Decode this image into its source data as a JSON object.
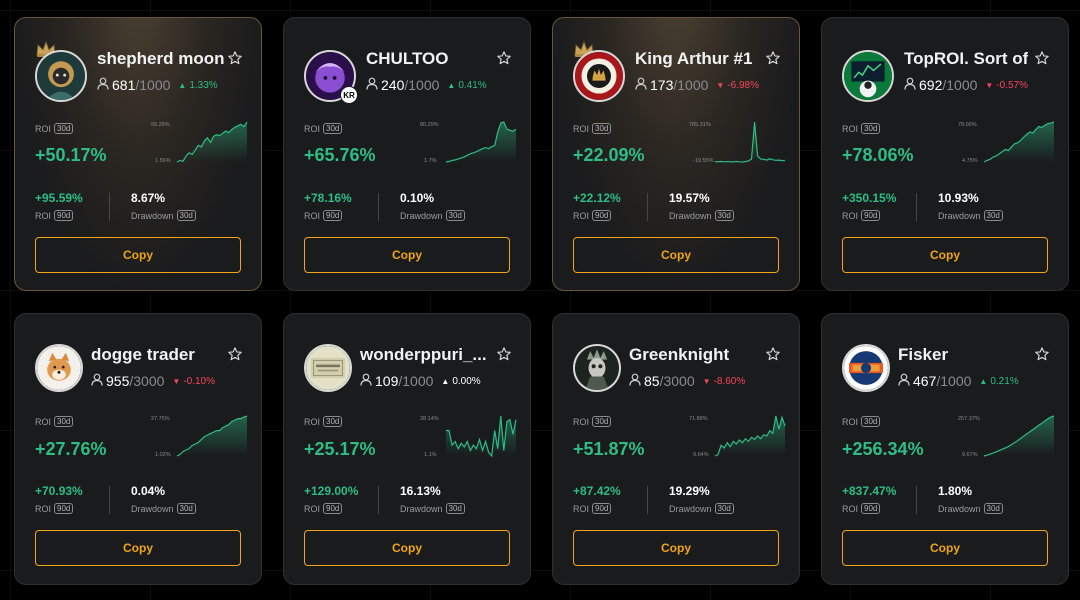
{
  "ui": {
    "roi_label": "ROI",
    "drawdown_label": "Drawdown",
    "period_30": "30d",
    "period_90": "90d",
    "copy_label": "Copy"
  },
  "colors": {
    "up": "#2ebd85",
    "down": "#f6465d",
    "accent": "#f0a416"
  },
  "icons": [
    "crown-icon",
    "star-icon",
    "person-icon",
    "triangle-up-icon",
    "triangle-down-icon"
  ],
  "traders": [
    {
      "name": "shepherd moon",
      "featured": true,
      "followers": "681",
      "capacity": "/1000",
      "change": "1.33%",
      "change_dir": "up",
      "roi_30d": "+50.17%",
      "spark_max": "55.26%",
      "spark_min": "1.56%",
      "spark": [
        2,
        4,
        3,
        10,
        14,
        12,
        18,
        24,
        22,
        30,
        34,
        28,
        36,
        38,
        37,
        40,
        43,
        41,
        45,
        48,
        50,
        52,
        49,
        55
      ],
      "roi_90d": "+95.59%",
      "drawdown_30d": "8.67%"
    },
    {
      "name": "CHULTOO",
      "featured": false,
      "badge": "KR",
      "followers": "240",
      "capacity": "/1000",
      "change": "0.41%",
      "change_dir": "up",
      "roi_30d": "+65.76%",
      "spark_max": "80.29%",
      "spark_min": "1.7%",
      "spark": [
        2,
        3,
        5,
        6,
        8,
        10,
        12,
        15,
        18,
        20,
        22,
        25,
        28,
        30,
        28,
        32,
        34,
        60,
        78,
        80,
        66,
        64,
        62,
        66
      ],
      "roi_90d": "+78.16%",
      "drawdown_30d": "0.10%"
    },
    {
      "name": "King Arthur #1",
      "featured": true,
      "followers": "173",
      "capacity": "/1000",
      "change": "-6.98%",
      "change_dir": "down",
      "roi_30d": "+22.09%",
      "spark_max": "785.31%",
      "spark_min": "-19.55%",
      "spark": [
        -10,
        -12,
        -8,
        -14,
        -10,
        -12,
        -16,
        -9,
        -15,
        -19,
        -10,
        5,
        40,
        785,
        100,
        40,
        35,
        20,
        45,
        25,
        15,
        20,
        10,
        12
      ],
      "roi_90d": "+22.12%",
      "drawdown_30d": "19.57%"
    },
    {
      "name": "TopROI. Sort of",
      "featured": false,
      "followers": "692",
      "capacity": "/1000",
      "change": "-0.57%",
      "change_dir": "down",
      "roi_30d": "+78.06%",
      "spark_max": "78.06%",
      "spark_min": "4.75%",
      "spark": [
        5,
        8,
        10,
        14,
        16,
        20,
        24,
        28,
        26,
        32,
        38,
        40,
        44,
        50,
        55,
        60,
        58,
        64,
        70,
        68,
        72,
        75,
        76,
        78
      ],
      "roi_90d": "+350.15%",
      "drawdown_30d": "10.93%"
    },
    {
      "name": "dogge trader",
      "featured": false,
      "followers": "955",
      "capacity": "/3000",
      "change": "-0.10%",
      "change_dir": "down",
      "roi_30d": "+27.76%",
      "spark_max": "27.75%",
      "spark_min": "1.02%",
      "spark": [
        1,
        2,
        4,
        5,
        6,
        8,
        9,
        10,
        12,
        14,
        15,
        16,
        17,
        18,
        18,
        20,
        21,
        22,
        24,
        25,
        26,
        26,
        27,
        27.75
      ],
      "roi_90d": "+70.93%",
      "drawdown_30d": "0.04%"
    },
    {
      "name": "wonderppuri_...",
      "featured": false,
      "followers": "109",
      "capacity": "/1000",
      "change": "0.00%",
      "change_dir": "flat",
      "roi_30d": "+25.17%",
      "spark_max": "28.14%",
      "spark_min": "1.1%",
      "spark": [
        20,
        20,
        12,
        14,
        10,
        13,
        11,
        14,
        9,
        12,
        10,
        15,
        9,
        14,
        8,
        6,
        20,
        10,
        28,
        9,
        25,
        26,
        18,
        26
      ],
      "roi_90d": "+129.00%",
      "drawdown_30d": "16.13%"
    },
    {
      "name": "Greenknight",
      "featured": false,
      "followers": "85",
      "capacity": "/3000",
      "change": "-8.60%",
      "change_dir": "down",
      "roi_30d": "+51.87%",
      "spark_max": "71.88%",
      "spark_min": "9.64%",
      "spark": [
        10,
        12,
        26,
        22,
        30,
        24,
        32,
        28,
        34,
        30,
        36,
        32,
        38,
        35,
        40,
        36,
        42,
        40,
        48,
        44,
        70,
        50,
        68,
        55
      ],
      "roi_90d": "+87.42%",
      "drawdown_30d": "19.29%"
    },
    {
      "name": "Fisker",
      "featured": false,
      "followers": "467",
      "capacity": "/1000",
      "change": "0.21%",
      "change_dir": "up",
      "roi_30d": "+256.34%",
      "spark_max": "257.37%",
      "spark_min": "9.67%",
      "spark": [
        10,
        15,
        22,
        28,
        36,
        44,
        52,
        60,
        68,
        80,
        92,
        104,
        118,
        132,
        145,
        160,
        172,
        186,
        200,
        212,
        226,
        240,
        250,
        257
      ],
      "roi_90d": "+837.47%",
      "drawdown_30d": "1.80%"
    }
  ]
}
